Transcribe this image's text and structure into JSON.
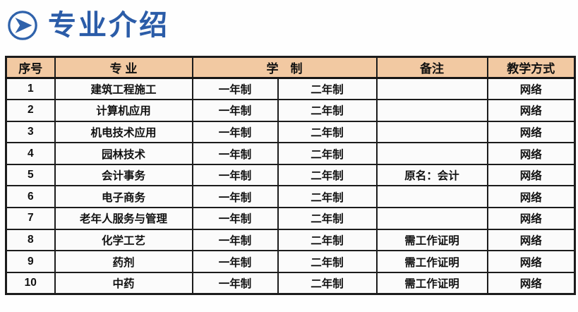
{
  "page": {
    "title": "专业介绍",
    "title_color": "#2b5ca8",
    "icon_color": "#2f62ab",
    "table_header_bg": "#f2c9a2"
  },
  "table": {
    "columns": {
      "index": "序号",
      "major": "专 业",
      "duration": "学　制",
      "remark": "备注",
      "method": "教学方式"
    },
    "rows": [
      {
        "index": "1",
        "major": "建筑工程施工",
        "year1": "一年制",
        "year2": "二年制",
        "remark": "",
        "method": "网络"
      },
      {
        "index": "2",
        "major": "计算机应用",
        "year1": "一年制",
        "year2": "二年制",
        "remark": "",
        "method": "网络"
      },
      {
        "index": "3",
        "major": "机电技术应用",
        "year1": "一年制",
        "year2": "二年制",
        "remark": "",
        "method": "网络"
      },
      {
        "index": "4",
        "major": "园林技术",
        "year1": "一年制",
        "year2": "二年制",
        "remark": "",
        "method": "网络"
      },
      {
        "index": "5",
        "major": "会计事务",
        "year1": "一年制",
        "year2": "二年制",
        "remark": "原名：会计",
        "method": "网络"
      },
      {
        "index": "6",
        "major": "电子商务",
        "year1": "一年制",
        "year2": "二年制",
        "remark": "",
        "method": "网络"
      },
      {
        "index": "7",
        "major": "老年人服务与管理",
        "year1": "一年制",
        "year2": "二年制",
        "remark": "",
        "method": "网络"
      },
      {
        "index": "8",
        "major": "化学工艺",
        "year1": "一年制",
        "year2": "二年制",
        "remark": "需工作证明",
        "method": "网络"
      },
      {
        "index": "9",
        "major": "药剂",
        "year1": "一年制",
        "year2": "二年制",
        "remark": "需工作证明",
        "method": "网络"
      },
      {
        "index": "10",
        "major": "中药",
        "year1": "一年制",
        "year2": "二年制",
        "remark": "需工作证明",
        "method": "网络"
      }
    ]
  }
}
